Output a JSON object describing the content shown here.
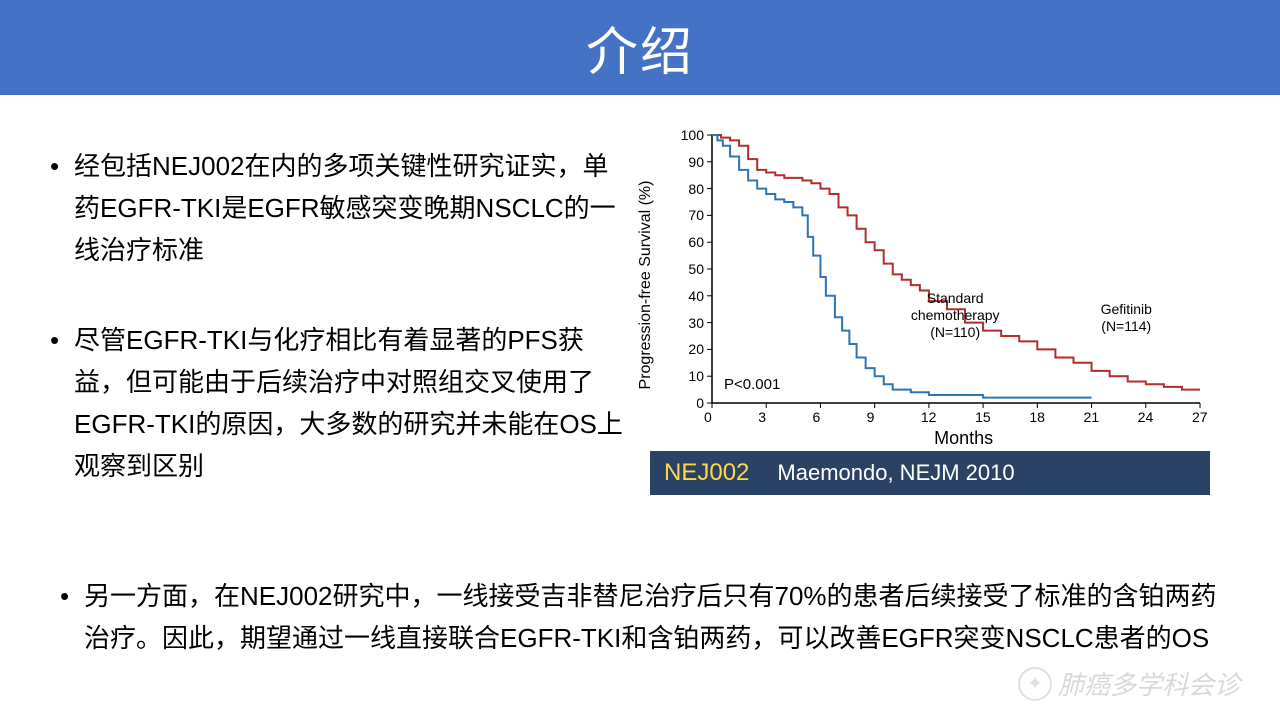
{
  "title": "介绍",
  "bullets": [
    "经包括NEJ002在内的多项关键性研究证实，单药EGFR-TKI是EGFR敏感突变晚期NSCLC的一线治疗标准",
    "尽管EGFR-TKI与化疗相比有着显著的PFS获益，但可能由于后续治疗中对照组交叉使用了EGFR-TKI的原因，大多数的研究并未能在OS上观察到区别",
    "另一方面，在NEJ002研究中，一线接受吉非替尼治疗后只有70%的患者后续接受了标准的含铂两药治疗。因此，期望通过一线直接联合EGFR-TKI和含铂两药，可以改善EGFR突变NSCLC患者的OS"
  ],
  "chart": {
    "type": "line",
    "y_label": "Progression-free Survival (%)",
    "x_label": "Months",
    "xlim": [
      0,
      27
    ],
    "ylim": [
      0,
      100
    ],
    "x_ticks": [
      0,
      3,
      6,
      9,
      12,
      15,
      18,
      21,
      24,
      27
    ],
    "y_ticks": [
      0,
      10,
      20,
      30,
      40,
      50,
      60,
      70,
      80,
      90,
      100
    ],
    "p_value": "P<0.001",
    "background_color": "#ffffff",
    "axis_color": "#000000",
    "series": [
      {
        "name": "Gefitinib",
        "n_label": "Gefitinib\n(N=114)",
        "color": "#b02e2e",
        "line_width": 2,
        "points": [
          [
            0,
            100
          ],
          [
            0.5,
            99
          ],
          [
            1,
            98
          ],
          [
            1.5,
            96
          ],
          [
            2,
            91
          ],
          [
            2.5,
            87
          ],
          [
            3,
            86
          ],
          [
            3.5,
            85
          ],
          [
            4,
            84
          ],
          [
            5,
            83
          ],
          [
            5.5,
            82
          ],
          [
            6,
            80
          ],
          [
            6.5,
            78
          ],
          [
            7,
            73
          ],
          [
            7.5,
            70
          ],
          [
            8,
            65
          ],
          [
            8.5,
            60
          ],
          [
            9,
            57
          ],
          [
            9.5,
            52
          ],
          [
            10,
            48
          ],
          [
            10.5,
            46
          ],
          [
            11,
            44
          ],
          [
            11.5,
            42
          ],
          [
            12,
            38
          ],
          [
            13,
            35
          ],
          [
            14,
            30
          ],
          [
            15,
            27
          ],
          [
            16,
            25
          ],
          [
            17,
            23
          ],
          [
            18,
            20
          ],
          [
            19,
            17
          ],
          [
            20,
            15
          ],
          [
            21,
            12
          ],
          [
            22,
            10
          ],
          [
            23,
            8
          ],
          [
            24,
            7
          ],
          [
            25,
            6
          ],
          [
            26,
            5
          ],
          [
            27,
            5
          ]
        ]
      },
      {
        "name": "Standard chemotherapy",
        "n_label": "Standard\nchemotherapy\n(N=110)",
        "color": "#2e75b6",
        "line_width": 2,
        "points": [
          [
            0,
            100
          ],
          [
            0.3,
            98
          ],
          [
            0.6,
            96
          ],
          [
            1,
            92
          ],
          [
            1.5,
            87
          ],
          [
            2,
            83
          ],
          [
            2.5,
            80
          ],
          [
            3,
            78
          ],
          [
            3.5,
            76
          ],
          [
            4,
            75
          ],
          [
            4.5,
            73
          ],
          [
            5,
            70
          ],
          [
            5.3,
            62
          ],
          [
            5.6,
            55
          ],
          [
            6,
            47
          ],
          [
            6.3,
            40
          ],
          [
            6.8,
            32
          ],
          [
            7.2,
            27
          ],
          [
            7.6,
            22
          ],
          [
            8,
            17
          ],
          [
            8.5,
            13
          ],
          [
            9,
            10
          ],
          [
            9.5,
            7
          ],
          [
            10,
            5
          ],
          [
            11,
            4
          ],
          [
            12,
            3
          ],
          [
            13,
            3
          ],
          [
            15,
            2
          ],
          [
            18,
            2
          ],
          [
            20,
            2
          ],
          [
            21,
            2
          ]
        ]
      }
    ]
  },
  "caption": {
    "left": "NEJ002",
    "right": "Maemondo, NEJM 2010",
    "bg_color": "#2a4365",
    "left_color": "#ffd84a",
    "right_color": "#ffffff"
  },
  "watermark": "肺癌多学科会诊",
  "colors": {
    "title_bg": "#4472c4",
    "title_text": "#ffffff",
    "body_text": "#000000"
  }
}
